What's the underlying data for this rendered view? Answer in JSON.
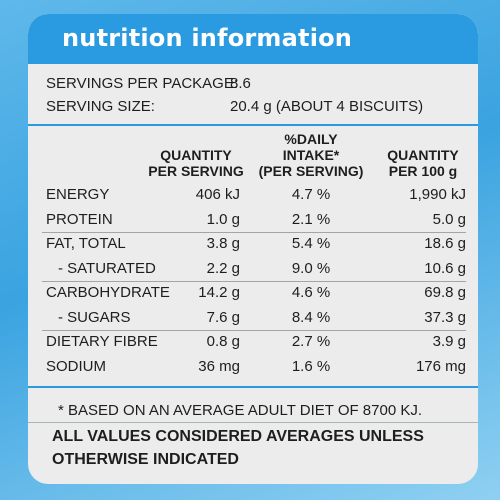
{
  "header": {
    "title": "nutrition information"
  },
  "servings": {
    "per_package_label": "SERVINGS PER PACKAGE:",
    "per_package_value": "8.6",
    "size_label": "SERVING SIZE:",
    "size_value": "20.4 g (ABOUT 4 BISCUITS)"
  },
  "table": {
    "columns": [
      {
        "line1": "QUANTITY",
        "line2": "PER SERVING",
        "line3": ""
      },
      {
        "line1": "%DAILY",
        "line2": "INTAKE*",
        "line3": "(PER SERVING)"
      },
      {
        "line1": "QUANTITY",
        "line2": "PER 100 g",
        "line3": ""
      }
    ],
    "rows": [
      {
        "label": "ENERGY",
        "per_serving": "406 kJ",
        "daily_intake": "4.7 %",
        "per_100g": "1,990 kJ"
      },
      {
        "label": "PROTEIN",
        "per_serving": "1.0 g",
        "daily_intake": "2.1 %",
        "per_100g": "5.0 g"
      },
      {
        "label": "FAT, TOTAL",
        "per_serving": "3.8 g",
        "daily_intake": "5.4 %",
        "per_100g": "18.6 g"
      },
      {
        "label": "- SATURATED",
        "per_serving": "2.2 g",
        "daily_intake": "9.0 %",
        "per_100g": "10.6 g"
      },
      {
        "label": "CARBOHYDRATE",
        "per_serving": "14.2 g",
        "daily_intake": "4.6 %",
        "per_100g": "69.8 g"
      },
      {
        "label": "- SUGARS",
        "per_serving": "7.6 g",
        "daily_intake": "8.4 %",
        "per_100g": "37.3 g"
      },
      {
        "label": "DIETARY FIBRE",
        "per_serving": "0.8 g",
        "daily_intake": "2.7 %",
        "per_100g": "3.9 g"
      },
      {
        "label": "SODIUM",
        "per_serving": "36 mg",
        "daily_intake": "1.6 %",
        "per_100g": "176 mg"
      }
    ]
  },
  "footnote": "* BASED ON AN AVERAGE ADULT DIET OF 8700 KJ.",
  "notice": {
    "line1": "ALL VALUES CONSIDERED AVERAGES UNLESS",
    "line2": "OTHERWISE INDICATED"
  },
  "colors": {
    "accent_blue": "#2a9be0",
    "panel_bg": "#ececec",
    "text": "#1e1e1e"
  }
}
